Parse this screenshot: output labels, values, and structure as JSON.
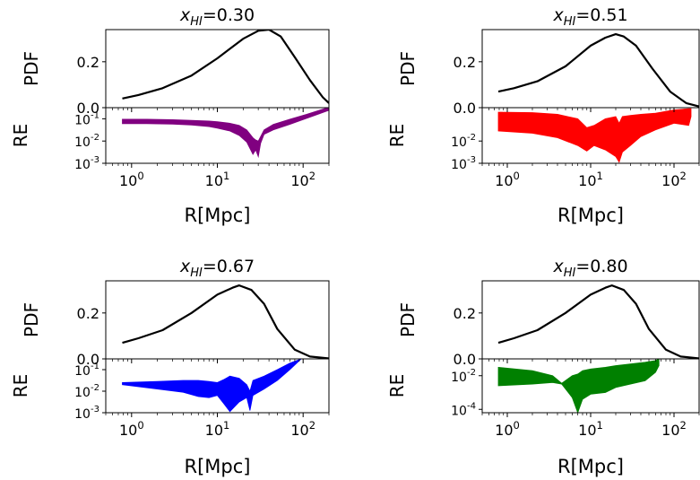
{
  "chart_data": [
    {
      "type": "line",
      "title_sym": "x",
      "title_sub": "HI",
      "title_val": "=0.30",
      "ylabel": "PDF",
      "re_label": "RE",
      "xlabel": "R[Mpc]",
      "xscale": "log",
      "xlim": [
        0.5,
        200
      ],
      "pdf_ylim": [
        0,
        0.34
      ],
      "pdf_yticks": [
        "0.0",
        "0.2"
      ],
      "pdf_x": [
        0.78,
        1.2,
        2.3,
        5,
        10,
        20,
        30,
        40,
        55,
        80,
        120,
        170,
        200
      ],
      "pdf_y": [
        0.04,
        0.055,
        0.085,
        0.14,
        0.215,
        0.3,
        0.335,
        0.34,
        0.31,
        0.22,
        0.12,
        0.045,
        0.02
      ],
      "re_ylim_exp": [
        -3,
        -0.5
      ],
      "re_yticks": [
        "10^-1",
        "10^-2",
        "10^-3"
      ],
      "re_color": "#800080",
      "re_x": [
        0.78,
        1.5,
        3,
        5,
        8,
        10,
        14,
        18,
        22,
        26,
        28,
        30,
        32,
        35,
        45,
        70,
        110,
        200
      ],
      "re_lo_exp": [
        -1.22,
        -1.22,
        -1.24,
        -1.28,
        -1.35,
        -1.42,
        -1.55,
        -1.75,
        -2.05,
        -2.6,
        -2.4,
        -2.7,
        -2.1,
        -1.7,
        -1.5,
        -1.25,
        -0.98,
        -0.62
      ],
      "re_hi_exp": [
        -1.02,
        -1.02,
        -1.04,
        -1.07,
        -1.1,
        -1.13,
        -1.2,
        -1.3,
        -1.5,
        -1.85,
        -1.95,
        -2.0,
        -1.8,
        -1.5,
        -1.25,
        -1.02,
        -0.8,
        -0.48
      ]
    },
    {
      "type": "line",
      "title_sym": "x",
      "title_sub": "HI",
      "title_val": "=0.51",
      "ylabel": "PDF",
      "re_label": "RE",
      "xlabel": "R[Mpc]",
      "xscale": "log",
      "xlim": [
        0.5,
        200
      ],
      "pdf_ylim": [
        0,
        0.34
      ],
      "pdf_yticks": [
        "0.0",
        "0.2"
      ],
      "pdf_x": [
        0.78,
        1.2,
        2.3,
        5,
        10,
        15,
        20,
        25,
        35,
        55,
        90,
        140,
        200
      ],
      "pdf_y": [
        0.07,
        0.085,
        0.115,
        0.18,
        0.27,
        0.305,
        0.32,
        0.31,
        0.27,
        0.17,
        0.07,
        0.02,
        0.005
      ],
      "re_ylim_exp": [
        -3,
        -0.5
      ],
      "re_yticks": [
        "10^-2",
        "10^-3"
      ],
      "re_color": "#ff0000",
      "re_x": [
        0.78,
        2,
        4,
        7,
        9,
        11,
        15,
        20,
        22,
        24,
        30,
        40,
        60,
        100,
        150,
        160
      ],
      "re_lo_exp": [
        -1.55,
        -1.65,
        -1.85,
        -2.2,
        -2.45,
        -2.2,
        -2.4,
        -2.7,
        -2.95,
        -2.5,
        -2.2,
        -1.8,
        -1.5,
        -1.2,
        -1.3,
        -0.9
      ],
      "re_hi_exp": [
        -0.7,
        -0.72,
        -0.8,
        -1.0,
        -1.4,
        -1.3,
        -1.0,
        -0.9,
        -1.2,
        -0.9,
        -0.85,
        -0.8,
        -0.75,
        -0.6,
        -0.55,
        -0.55
      ]
    },
    {
      "type": "line",
      "title_sym": "x",
      "title_sub": "HI",
      "title_val": "=0.67",
      "ylabel": "PDF",
      "re_label": "RE",
      "xlabel": "R[Mpc]",
      "xscale": "log",
      "xlim": [
        0.5,
        200
      ],
      "pdf_ylim": [
        0,
        0.34
      ],
      "pdf_yticks": [
        "0.0",
        "0.2"
      ],
      "pdf_x": [
        0.78,
        1.2,
        2.3,
        5,
        10,
        15,
        18,
        25,
        35,
        50,
        80,
        120,
        200
      ],
      "pdf_y": [
        0.07,
        0.09,
        0.125,
        0.2,
        0.28,
        0.31,
        0.32,
        0.3,
        0.24,
        0.13,
        0.04,
        0.01,
        0.002
      ],
      "re_ylim_exp": [
        -3,
        -0.5
      ],
      "re_yticks": [
        "10^-1",
        "10^-2",
        "10^-3"
      ],
      "re_color": "#0000ff",
      "re_x": [
        0.78,
        2,
        4,
        6,
        8,
        10,
        12,
        14,
        18,
        22,
        24,
        26,
        35,
        50,
        70,
        95
      ],
      "re_lo_exp": [
        -1.7,
        -1.9,
        -2.05,
        -2.25,
        -2.3,
        -2.2,
        -2.6,
        -2.95,
        -2.5,
        -2.3,
        -2.9,
        -2.2,
        -1.9,
        -1.5,
        -1.0,
        -0.5
      ],
      "re_hi_exp": [
        -1.6,
        -1.55,
        -1.5,
        -1.5,
        -1.55,
        -1.6,
        -1.45,
        -1.3,
        -1.4,
        -1.7,
        -2.0,
        -1.5,
        -1.3,
        -1.0,
        -0.7,
        -0.5
      ]
    },
    {
      "type": "line",
      "title_sym": "x",
      "title_sub": "HI",
      "title_val": "=0.80",
      "ylabel": "PDF",
      "re_label": "RE",
      "xlabel": "R[Mpc]",
      "xscale": "log",
      "xlim": [
        0.5,
        200
      ],
      "pdf_ylim": [
        0,
        0.34
      ],
      "pdf_yticks": [
        "0.0",
        "0.2"
      ],
      "pdf_x": [
        0.78,
        1.2,
        2.3,
        5,
        10,
        15,
        18,
        25,
        35,
        50,
        80,
        120,
        200
      ],
      "pdf_y": [
        0.07,
        0.09,
        0.125,
        0.2,
        0.28,
        0.31,
        0.32,
        0.3,
        0.24,
        0.13,
        0.04,
        0.01,
        0.002
      ],
      "re_ylim_exp": [
        -4.2,
        -1.0
      ],
      "re_yticks": [
        "10^-2",
        "10^-4"
      ],
      "re_color": "#008000",
      "re_x": [
        0.78,
        2,
        3.5,
        4.5,
        6,
        7,
        8,
        10,
        15,
        20,
        30,
        45,
        60,
        66
      ],
      "re_lo_exp": [
        -2.6,
        -2.5,
        -2.4,
        -2.5,
        -3.3,
        -4.2,
        -3.4,
        -3.1,
        -3.0,
        -2.7,
        -2.5,
        -2.3,
        -1.8,
        -1.4
      ],
      "re_hi_exp": [
        -1.5,
        -1.7,
        -2.0,
        -2.45,
        -2.0,
        -1.9,
        -1.7,
        -1.6,
        -1.5,
        -1.4,
        -1.3,
        -1.2,
        -1.1,
        -1.0
      ]
    }
  ]
}
